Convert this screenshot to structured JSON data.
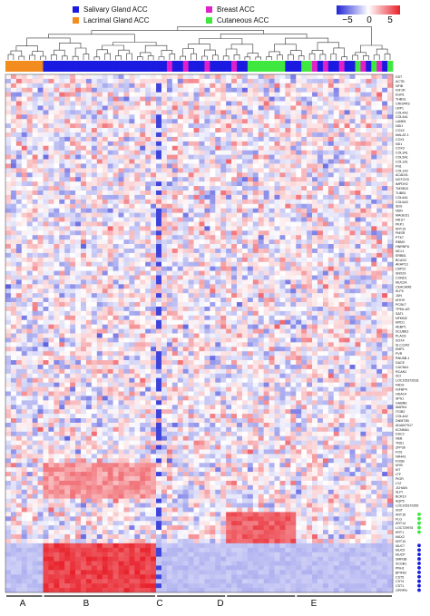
{
  "chart_data": {
    "type": "heatmap",
    "legend": [
      {
        "label": "Salivary Gland ACC",
        "color": "#1a1ae0"
      },
      {
        "label": "Breast ACC",
        "color": "#e020c8"
      },
      {
        "label": "Lacrimal Gland ACC",
        "color": "#f28c1e"
      },
      {
        "label": "Cutaneous ACC",
        "color": "#3ee83e"
      }
    ],
    "colorbar": {
      "ticks": [
        "−5",
        "0",
        "5"
      ],
      "range": [
        -7,
        7
      ],
      "low_color": "#1f25d4",
      "mid_color": "#ffffff",
      "high_color": "#e8202a"
    },
    "sample_groups": [
      {
        "label": "A",
        "start": 0,
        "end": 7
      },
      {
        "label": "B",
        "start": 7,
        "end": 28
      },
      {
        "label": "C",
        "start": 28,
        "end": 41
      },
      {
        "label": "D",
        "start": 41,
        "end": 54
      },
      {
        "label": "E",
        "start": 54,
        "end": 72
      }
    ],
    "sample_types": "LLLLLLLSSSSSSSSSSSSSSSSSSSSSSSBSSBSSSBSSSSBSSCCCCCCCSSSCCBSBSSBSSCBSCBSC",
    "genes": [
      "DST",
      "ACTB",
      "NFIB",
      "IGF1R",
      "EGR1",
      "THBS1",
      "CRISPR3",
      "LRP1",
      "COL4A2",
      "COL4A1",
      "LAMB1",
      "NID1",
      "COX2",
      "MALAT-1",
      "COX1",
      "ND1",
      "COX3",
      "COL3A1",
      "COL5A1",
      "COL1A1",
      "FN1",
      "COL1A2",
      "ACADVL",
      "NOTCH3",
      "IMPDH2",
      "TMSB10",
      "TUBB1",
      "COL6A1",
      "COL6A3",
      "SDS",
      "NDN",
      "MAGED1",
      "NR1I7",
      "PKP1",
      "KRT15",
      "PMSR",
      "PTK7",
      "RBMX",
      "HNRNPU",
      "MCL1",
      "ERBB1",
      "BCAS3",
      "AKAP13",
      "USP22",
      "SNX29",
      "COND1",
      "MUC2A",
      "CEACAM6",
      "KLF6",
      "JUN",
      "MYH9",
      "PCSK7",
      "TPM1-AS",
      "SAT1",
      "NFKBIZ",
      "MXD1",
      "AEBP1",
      "SCUBE3",
      "PLAC8",
      "SOX4",
      "SLC12A2",
      "EMP1",
      "PVR",
      "RNU5B-1",
      "DACE",
      "CACNA1",
      "RCAN1",
      "SCI",
      "LOC105372618",
      "FADS",
      "IGFBP4",
      "HDAC4",
      "SPS1",
      "GHBRE",
      "MARK4",
      "ITGB2",
      "COL4A2",
      "DNMT3B",
      "ADAMTS17",
      "KCNMA1",
      "DSC2",
      "NEB",
      "TNS1",
      "ZFP36",
      "FOS",
      "NR4A1",
      "FOSB",
      "MYB",
      "KIT",
      "LTF",
      "PIGR",
      "LYZ",
      "JCHAIN",
      "SLPI",
      "BCR10",
      "AQP5",
      "LOC105372955",
      "XIST",
      "KRT16",
      "FLG",
      "KRT14",
      "LOC729978",
      "KRT1",
      "MAX2",
      "KRT10",
      "MUC7",
      "MUC5",
      "MUCP",
      "SMR3B",
      "SCGB1",
      "PRH1",
      "BPIFA2",
      "CST5",
      "CST4",
      "CST1",
      "OPRPN"
    ],
    "marker_dots": [
      {
        "gene": "KRT16",
        "color": "#3ee83e"
      },
      {
        "gene": "FLG",
        "color": "#3ee83e"
      },
      {
        "gene": "KRT14",
        "color": "#3ee83e"
      },
      {
        "gene": "LOC729978",
        "color": "#3ee83e"
      },
      {
        "gene": "KRT1",
        "color": "#3ee83e"
      },
      {
        "gene": "MUC7",
        "color": "#1a1ae0"
      },
      {
        "gene": "MUC5",
        "color": "#1a1ae0"
      },
      {
        "gene": "MUCP",
        "color": "#1a1ae0"
      },
      {
        "gene": "SMR3B",
        "color": "#1a1ae0"
      },
      {
        "gene": "SCGB1",
        "color": "#1a1ae0"
      },
      {
        "gene": "PRH1",
        "color": "#1a1ae0"
      },
      {
        "gene": "BPIFA2",
        "color": "#1a1ae0"
      },
      {
        "gene": "CST5",
        "color": "#1a1ae0"
      },
      {
        "gene": "CST4",
        "color": "#1a1ae0"
      },
      {
        "gene": "CST1",
        "color": "#1a1ae0"
      },
      {
        "gene": "OPRPN",
        "color": "#1a1ae0"
      }
    ]
  }
}
